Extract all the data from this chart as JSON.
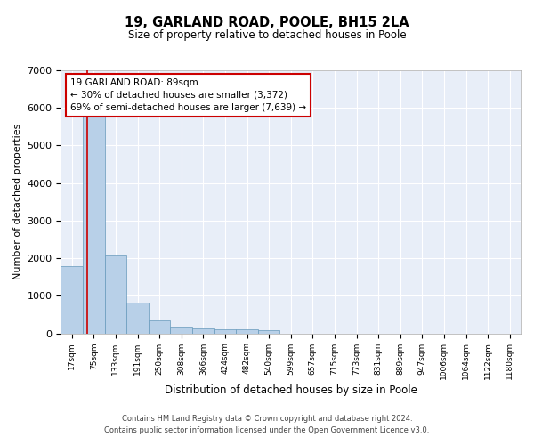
{
  "title_line1": "19, GARLAND ROAD, POOLE, BH15 2LA",
  "title_line2": "Size of property relative to detached houses in Poole",
  "xlabel": "Distribution of detached houses by size in Poole",
  "ylabel": "Number of detached properties",
  "bar_color": "#b8d0e8",
  "bar_edge_color": "#6699bb",
  "highlight_color": "#cc0000",
  "background_color": "#e8eef8",
  "grid_color": "#ffffff",
  "bin_labels": [
    "17sqm",
    "75sqm",
    "133sqm",
    "191sqm",
    "250sqm",
    "308sqm",
    "366sqm",
    "424sqm",
    "482sqm",
    "540sqm",
    "599sqm",
    "657sqm",
    "715sqm",
    "773sqm",
    "831sqm",
    "889sqm",
    "947sqm",
    "1006sqm",
    "1064sqm",
    "1122sqm",
    "1180sqm"
  ],
  "bar_values": [
    1790,
    5800,
    2070,
    820,
    340,
    185,
    130,
    110,
    100,
    80,
    0,
    0,
    0,
    0,
    0,
    0,
    0,
    0,
    0,
    0,
    0
  ],
  "ylim": [
    0,
    7000
  ],
  "yticks": [
    0,
    1000,
    2000,
    3000,
    4000,
    5000,
    6000,
    7000
  ],
  "annotation_line1": "19 GARLAND ROAD: 89sqm",
  "annotation_line2": "← 30% of detached houses are smaller (3,372)",
  "annotation_line3": "69% of semi-detached houses are larger (7,639) →",
  "vline_x": 1.2,
  "footer_line1": "Contains HM Land Registry data © Crown copyright and database right 2024.",
  "footer_line2": "Contains public sector information licensed under the Open Government Licence v3.0."
}
